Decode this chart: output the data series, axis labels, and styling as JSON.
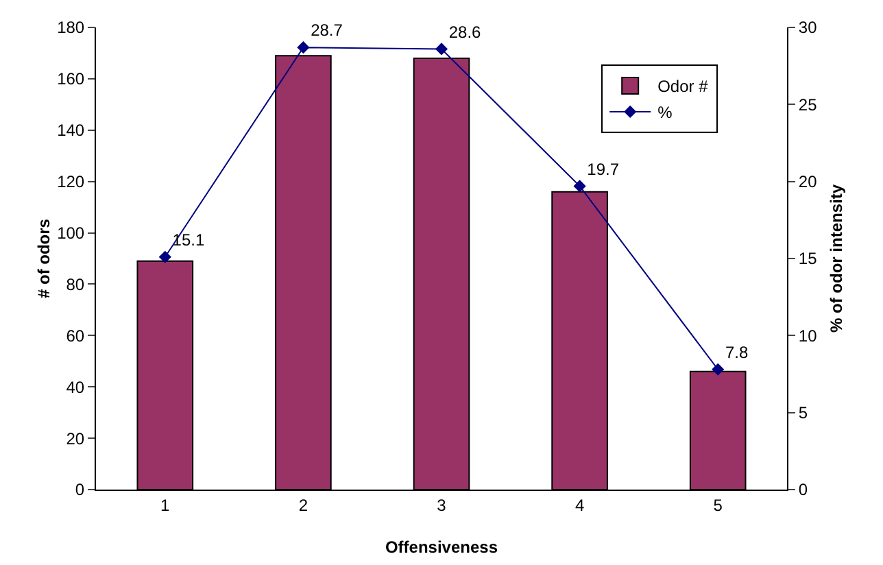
{
  "chart_data": {
    "type": "bar",
    "xlabel": "Offensiveness",
    "ylabel": "# of odors",
    "y2label": "% of odor intensity",
    "categories": [
      "1",
      "2",
      "3",
      "4",
      "5"
    ],
    "series": [
      {
        "name": "Odor #",
        "color": "#993366",
        "values": [
          89,
          169,
          168,
          116,
          46
        ]
      },
      {
        "name": "%",
        "type": "line",
        "axis": "y2",
        "color": "#000080",
        "marker": "diamond",
        "values": [
          15.1,
          28.7,
          28.6,
          19.7,
          7.8
        ],
        "value_labels": [
          "15.1",
          "28.7",
          "28.6",
          "19.7",
          "7.8"
        ]
      }
    ],
    "ylim": [
      0,
      180
    ],
    "yticks": [
      0,
      20,
      40,
      60,
      80,
      100,
      120,
      140,
      160,
      180
    ],
    "y2lim": [
      0,
      30
    ],
    "y2ticks": [
      0,
      5,
      10,
      15,
      20,
      25,
      30
    ],
    "legend": "top right"
  }
}
